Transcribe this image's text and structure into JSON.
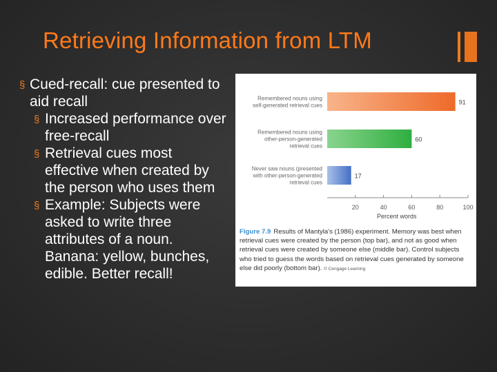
{
  "slide": {
    "title": "Retrieving Information from LTM",
    "bullets": [
      {
        "level": 1,
        "text": "Cued-recall: cue presented to aid recall"
      },
      {
        "level": 2,
        "text": "Increased performance over free-recall"
      },
      {
        "level": 2,
        "text": "Retrieval cues most effective when created by the person who uses them"
      },
      {
        "level": 2,
        "text": "Example: Subjects were asked to write three attributes of a noun. Banana: yellow, bunches, edible. Better recall!"
      }
    ]
  },
  "colors": {
    "title": "#ff7a1a",
    "accent": "#f07a1e",
    "background": "#2c2c2c",
    "bar_top": "#f07a3a",
    "bar_middle": "#39b54a",
    "bar_bottom": "#4e79c8"
  },
  "figure": {
    "caption_label": "Figure 7.9",
    "caption_text": "Results of Mantyla's (1986) experiment. Memory was best when retrieval cues were created by the person (top bar), and not as good when retrieval cues were created by someone else (middle bar). Control subjects who tried to guess the words based on retrieval cues generated by someone else did poorly (bottom bar).",
    "credit": "© Cengage Learning"
  },
  "chart_data": {
    "type": "bar",
    "orientation": "horizontal",
    "categories": [
      [
        "Remembered nouns using",
        "self-generated retrieval cues"
      ],
      [
        "Remembered nouns using",
        "other-person-generated",
        "retrieval cues"
      ],
      [
        "Never saw nouns (presented",
        "with other-person-generated",
        "retrieval cues"
      ]
    ],
    "values": [
      91,
      60,
      17
    ],
    "value_labels": [
      "91",
      "60",
      "17"
    ],
    "xlabel": "Percent words",
    "xlim": [
      0,
      100
    ],
    "xticks": [
      20,
      40,
      60,
      80,
      100
    ],
    "grid": false
  }
}
